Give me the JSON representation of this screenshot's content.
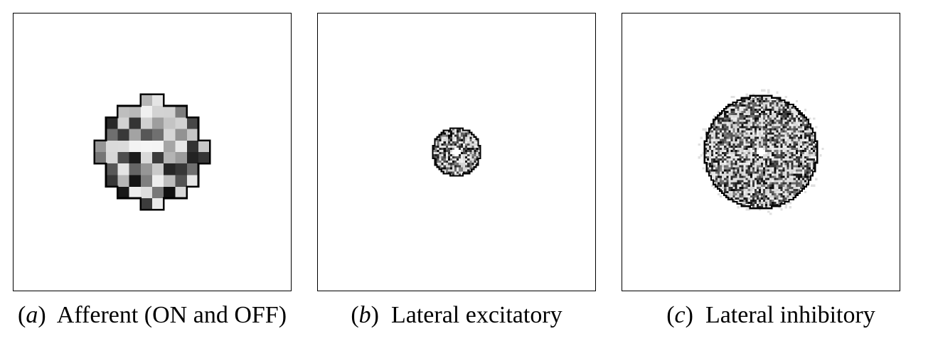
{
  "panels": [
    {
      "id": "a",
      "letter": "a",
      "label": "Afferent (ON and OFF)",
      "radius_cells": 4.6,
      "grid": 24,
      "kind": "afferent"
    },
    {
      "id": "b",
      "letter": "b",
      "label": "Lateral excitatory",
      "radius_cells": 11,
      "grid": 128,
      "kind": "excitatory"
    },
    {
      "id": "c",
      "letter": "c",
      "label": "Lateral inhibitory",
      "radius_cells": 26,
      "grid": 128,
      "kind": "inhibitory"
    }
  ]
}
